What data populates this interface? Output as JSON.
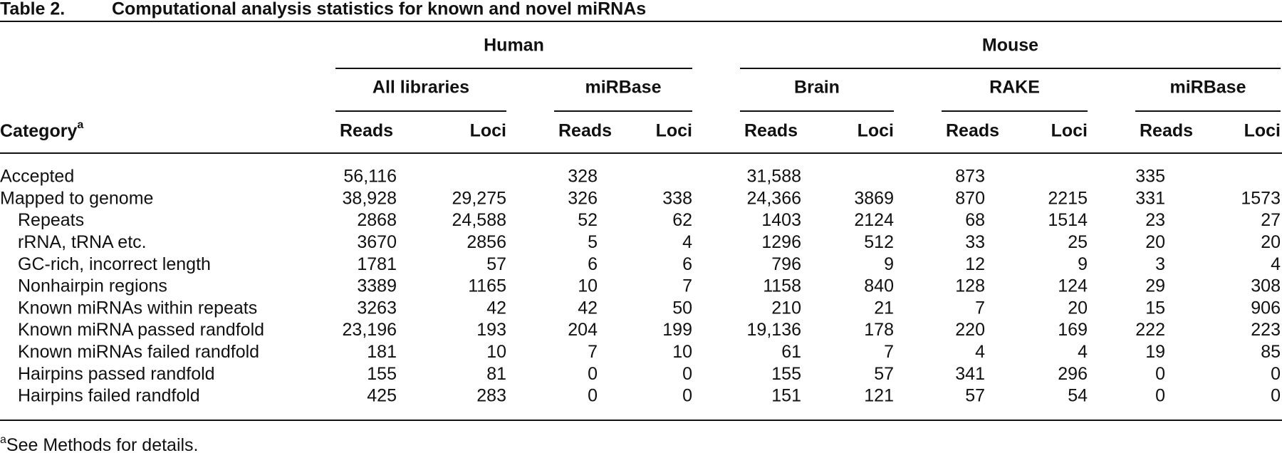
{
  "title": {
    "label": "Table 2.",
    "text": "Computational analysis statistics for known and novel miRNAs"
  },
  "table": {
    "groups": [
      {
        "name": "Human",
        "subgroups": [
          "All libraries",
          "miRBase"
        ]
      },
      {
        "name": "Mouse",
        "subgroups": [
          "Brain",
          "RAKE",
          "miRBase"
        ]
      }
    ],
    "category_header": {
      "text": "Category",
      "note": "a"
    },
    "columns": [
      "Reads",
      "Loci",
      "Reads",
      "Loci",
      "Reads",
      "Loci",
      "Reads",
      "Loci",
      "Reads",
      "Loci"
    ],
    "rows": [
      {
        "label": "Accepted",
        "cells": [
          "56,116",
          null,
          "328",
          null,
          "31,588",
          null,
          "873",
          null,
          "335",
          null
        ]
      },
      {
        "label": "Mapped to genome",
        "cells": [
          "38,928",
          "29,275",
          "326",
          "338",
          "24,366",
          "3869",
          "870",
          "2215",
          "331",
          "1573"
        ]
      },
      {
        "label": "Repeats",
        "cells": [
          "2868",
          "24,588",
          "52",
          "62",
          "1403",
          "2124",
          "68",
          "1514",
          "23",
          "27"
        ]
      },
      {
        "label": "rRNA, tRNA etc.",
        "cells": [
          "3670",
          "2856",
          "5",
          "4",
          "1296",
          "512",
          "33",
          "25",
          "20",
          "20"
        ]
      },
      {
        "label": "GC-rich, incorrect length",
        "cells": [
          "1781",
          "57",
          "6",
          "6",
          "796",
          "9",
          "12",
          "9",
          "3",
          "4"
        ]
      },
      {
        "label": "Nonhairpin regions",
        "cells": [
          "3389",
          "1165",
          "10",
          "7",
          "1158",
          "840",
          "128",
          "124",
          "29",
          "308"
        ]
      },
      {
        "label": "Known miRNAs within repeats",
        "cells": [
          "3263",
          "42",
          "42",
          "50",
          "210",
          "21",
          "7",
          "20",
          "15",
          "906"
        ]
      },
      {
        "label": "Known miRNA passed randfold",
        "cells": [
          "23,196",
          "193",
          "204",
          "199",
          "19,136",
          "178",
          "220",
          "169",
          "222",
          "223"
        ]
      },
      {
        "label": "Known miRNAs failed randfold",
        "cells": [
          "181",
          "10",
          "7",
          "10",
          "61",
          "7",
          "4",
          "4",
          "19",
          "85"
        ]
      },
      {
        "label": "Hairpins passed randfold",
        "cells": [
          "155",
          "81",
          "0",
          "0",
          "155",
          "57",
          "341",
          "296",
          "0",
          "0"
        ]
      },
      {
        "label": "Hairpins failed randfold",
        "cells": [
          "425",
          "283",
          "0",
          "0",
          "151",
          "121",
          "57",
          "54",
          "0",
          "0"
        ]
      }
    ]
  },
  "footnote": {
    "mark": "a",
    "text": "See Methods for details."
  }
}
